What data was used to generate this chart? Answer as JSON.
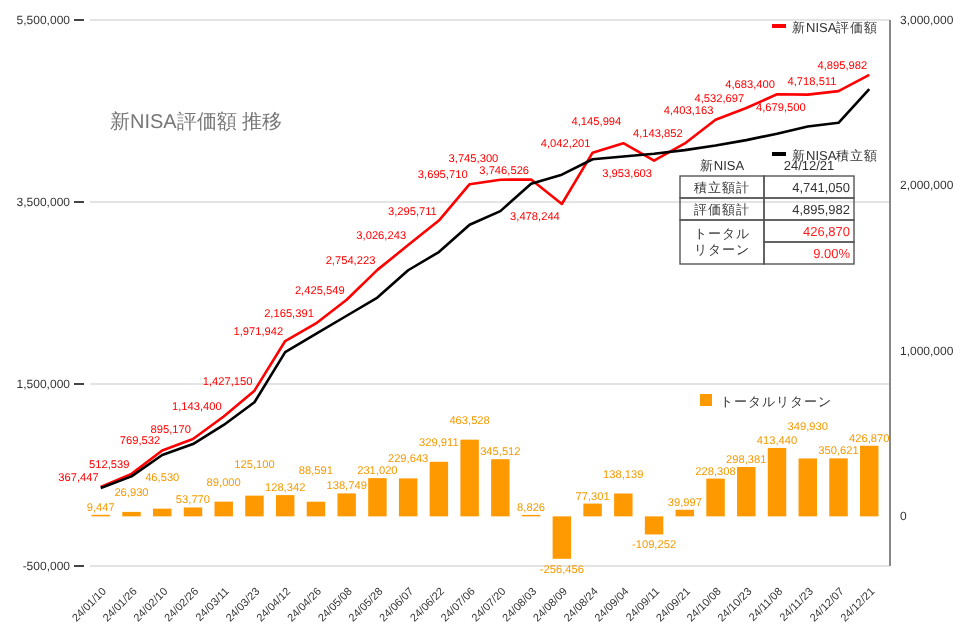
{
  "chart_data": {
    "type": "line",
    "title": "新NISA評価額 推移",
    "categories": [
      "24/01/10",
      "24/01/26",
      "24/02/10",
      "24/02/26",
      "24/03/11",
      "24/03/23",
      "24/04/12",
      "24/04/26",
      "24/05/08",
      "24/05/28",
      "24/06/07",
      "24/06/22",
      "24/07/06",
      "24/07/20",
      "24/08/03",
      "24/08/09",
      "24/08/24",
      "24/09/04",
      "24/09/11",
      "24/09/21",
      "24/10/08",
      "24/10/23",
      "24/11/08",
      "24/11/23",
      "24/12/07",
      "24/12/21"
    ],
    "series": [
      {
        "name": "新NISA評価額",
        "color": "#ff0000",
        "values": [
          367447,
          512539,
          769532,
          895170,
          1143400,
          1427150,
          1971942,
          2165391,
          2425549,
          2754223,
          3026243,
          3295711,
          3695710,
          3745300,
          3746526,
          3478244,
          4042201,
          4145994,
          3953603,
          4143852,
          4403163,
          4532697,
          4683400,
          4679500,
          4718511,
          4895982
        ],
        "value_labels": [
          "367,447",
          "512,539",
          "769,532",
          "895,170",
          "1,143,400",
          "1,427,150",
          "1,971,942",
          "2,165,391",
          "2,425,549",
          "2,754,223",
          "3,026,243",
          "3,295,711",
          "3,695,710",
          "3,745,300",
          "3,746,526",
          "3,478,244",
          "4,042,201",
          "4,145,994",
          "3,953,603",
          "4,143,852",
          "4,403,163",
          "4,532,697",
          "4,683,400",
          "4,679,500",
          "4,718,511",
          "4,895,982"
        ]
      },
      {
        "name": "新NISA積立額",
        "color": "#000000",
        "values": [
          358000,
          485000,
          720000,
          840000,
          1050000,
          1300000,
          1850000,
          2050000,
          2250000,
          2450000,
          2750000,
          2950000,
          3250000,
          3400000,
          3700000,
          3800000,
          3970000,
          4000000,
          4030000,
          4070000,
          4120000,
          4180000,
          4250000,
          4330000,
          4370000,
          4741050
        ]
      },
      {
        "name": "トータルリターン",
        "type": "bar",
        "axis": "y2",
        "color": "#ff9900",
        "values": [
          9447,
          26930,
          46530,
          53770,
          89000,
          125100,
          128342,
          88591,
          138749,
          231020,
          229643,
          329911,
          463528,
          345512,
          8826,
          -256456,
          77301,
          138139,
          -109252,
          39997,
          228308,
          298381,
          413440,
          349930,
          350621,
          426870
        ],
        "value_labels": [
          "9,447",
          "26,930",
          "46,530",
          "53,770",
          "89,000",
          "125,100",
          "128,342",
          "88,591",
          "138,749",
          "231,020",
          "229,643",
          "329,911",
          "463,528",
          "345,512",
          "8,826",
          "-256,456",
          "77,301",
          "138,139",
          "-109,252",
          "39,997",
          "228,308",
          "298,381",
          "413,440",
          "349,930",
          "350,621",
          "426,870"
        ]
      }
    ],
    "ylim": [
      -500000,
      5500000
    ],
    "yticks": [
      {
        "value": -500000,
        "label": "-500,000"
      },
      {
        "value": 1500000,
        "label": "1,500,000"
      },
      {
        "value": 3500000,
        "label": "3,500,000"
      },
      {
        "value": 5500000,
        "label": "5,500,000"
      }
    ],
    "y2lim": [
      -300000,
      3000000
    ],
    "y2ticks": [
      {
        "value": 0,
        "label": "0"
      },
      {
        "value": 1000000,
        "label": "1,000,000"
      },
      {
        "value": 2000000,
        "label": "2,000,000"
      },
      {
        "value": 3000000,
        "label": "3,000,000"
      }
    ],
    "grid": "y",
    "legend": "right",
    "marker": "none",
    "line_style": "solid",
    "annotations": [
      "新NISA",
      "24/12/21",
      "積立額計",
      "4,741,050",
      "評価額計",
      "4,895,982",
      "トータルリターン",
      "426,870",
      "9.00%"
    ]
  }
}
